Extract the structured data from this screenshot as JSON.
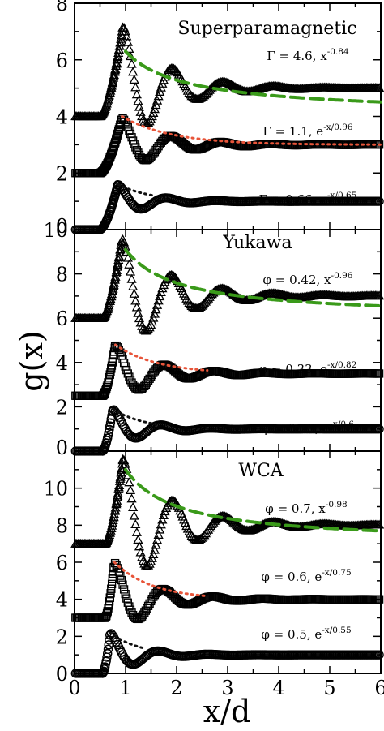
{
  "chart_data": {
    "type": "line",
    "xlabel": "x/d",
    "ylabel": "g(x)",
    "xlim": [
      0,
      6
    ],
    "x_ticks": [
      "0",
      "1",
      "2",
      "3",
      "4",
      "5",
      "6"
    ],
    "panels": [
      {
        "title": "Superparamagnetic",
        "ylim": [
          0,
          8
        ],
        "y_ticks": [
          "0",
          "2",
          "4",
          "6",
          "8"
        ],
        "series": [
          {
            "marker": "triangle",
            "offset": 4,
            "params": {
              "onset": 0.5,
              "peak_x": 0.95,
              "peak": 3.2,
              "period": 0.99,
              "amp": 2.3,
              "decay": 0.85
            }
          },
          {
            "marker": "square",
            "offset": 2,
            "params": {
              "onset": 0.5,
              "peak_x": 0.93,
              "peak": 1.95,
              "period": 0.98,
              "amp": 0.95,
              "decay": 0.85
            }
          },
          {
            "marker": "circle",
            "offset": 0,
            "params": {
              "onset": 0.5,
              "peak_x": 0.85,
              "peak": 1.6,
              "period": 0.98,
              "amp": 0.6,
              "decay": 0.6
            }
          }
        ],
        "fits": [
          {
            "label": "Γ = 4.6, x",
            "sup": "-0.84",
            "color": "#3a9a1a",
            "kind": "power",
            "base": 4,
            "A": 2.3,
            "p": 0.84,
            "x0": 1.0,
            "x1": 6.0,
            "pattern": "16 8",
            "width": 4
          },
          {
            "label": "Γ = 1.1, e",
            "sup": "-x/0.96",
            "color": "#e8553a",
            "kind": "exp",
            "base": 3,
            "A": 1.0,
            "L": 0.96,
            "x0": 0.93,
            "x1": 6.0,
            "pattern": "2 5",
            "width": 3
          },
          {
            "label": "Γ = 0.66, e",
            "sup": "-x/0.65",
            "color": "#111111",
            "kind": "exp",
            "base": 1,
            "A": 0.6,
            "L": 0.65,
            "x0": 0.85,
            "x1": 1.6,
            "pattern": "2 5",
            "width": 3
          }
        ]
      },
      {
        "title": "Yukawa",
        "ylim": [
          0,
          10
        ],
        "y_ticks": [
          "0",
          "2",
          "4",
          "6",
          "8",
          "10"
        ],
        "series": [
          {
            "marker": "triangle",
            "offset": 6,
            "params": {
              "onset": 0.55,
              "peak_x": 0.93,
              "peak": 3.6,
              "period": 0.99,
              "amp": 2.6,
              "decay": 0.96
            }
          },
          {
            "marker": "square",
            "offset": 2.5,
            "params": {
              "onset": 0.55,
              "peak_x": 0.8,
              "peak": 2.3,
              "period": 0.98,
              "amp": 1.4,
              "decay": 0.82
            }
          },
          {
            "marker": "circle",
            "offset": 0,
            "params": {
              "onset": 0.55,
              "peak_x": 0.75,
              "peak": 1.9,
              "period": 0.98,
              "amp": 0.9,
              "decay": 0.6
            }
          }
        ],
        "fits": [
          {
            "label": "φ = 0.42, x",
            "sup": "-0.96",
            "color": "#3a9a1a",
            "kind": "power",
            "base": 6,
            "A": 3.1,
            "p": 0.96,
            "x0": 1.0,
            "x1": 6.0,
            "pattern": "16 8",
            "width": 4
          },
          {
            "label": "φ = 0.33, e",
            "sup": "-x/0.82",
            "color": "#e8553a",
            "kind": "exp",
            "base": 3.5,
            "A": 1.3,
            "L": 0.82,
            "x0": 0.8,
            "x1": 2.6,
            "pattern": "2 5",
            "width": 3
          },
          {
            "label": "φ = 0.28, e",
            "sup": "-x/0.6",
            "color": "#111111",
            "kind": "exp",
            "base": 1,
            "A": 0.9,
            "L": 0.6,
            "x0": 0.75,
            "x1": 1.6,
            "pattern": "2 5",
            "width": 3
          }
        ]
      },
      {
        "title": "WCA",
        "ylim": [
          0,
          12
        ],
        "y_ticks": [
          "0",
          "2",
          "4",
          "6",
          "8",
          "10"
        ],
        "series": [
          {
            "marker": "triangle",
            "offset": 7,
            "params": {
              "onset": 0.6,
              "peak_x": 0.95,
              "peak": 4.6,
              "period": 0.99,
              "amp": 2.9,
              "decay": 0.98
            }
          },
          {
            "marker": "square",
            "offset": 3,
            "params": {
              "onset": 0.6,
              "peak_x": 0.78,
              "peak": 3.0,
              "period": 0.98,
              "amp": 2.1,
              "decay": 0.75
            }
          },
          {
            "marker": "circle",
            "offset": 0,
            "params": {
              "onset": 0.55,
              "peak_x": 0.7,
              "peak": 2.2,
              "period": 0.98,
              "amp": 1.2,
              "decay": 0.55
            }
          }
        ],
        "fits": [
          {
            "label": "φ = 0.7, x",
            "sup": "-0.98",
            "color": "#3a9a1a",
            "kind": "power",
            "base": 7,
            "A": 4.0,
            "p": 0.98,
            "x0": 1.0,
            "x1": 6.0,
            "pattern": "16 8",
            "width": 4
          },
          {
            "label": "φ = 0.6, e",
            "sup": "-x/0.75",
            "color": "#e8553a",
            "kind": "exp",
            "base": 4,
            "A": 2.0,
            "L": 0.75,
            "x0": 0.78,
            "x1": 2.6,
            "pattern": "2 5",
            "width": 3
          },
          {
            "label": "φ = 0.5, e",
            "sup": "-x/0.55",
            "color": "#111111",
            "kind": "exp",
            "base": 1,
            "A": 1.2,
            "L": 0.55,
            "x0": 0.7,
            "x1": 1.4,
            "pattern": "2 5",
            "width": 3
          }
        ]
      }
    ]
  }
}
